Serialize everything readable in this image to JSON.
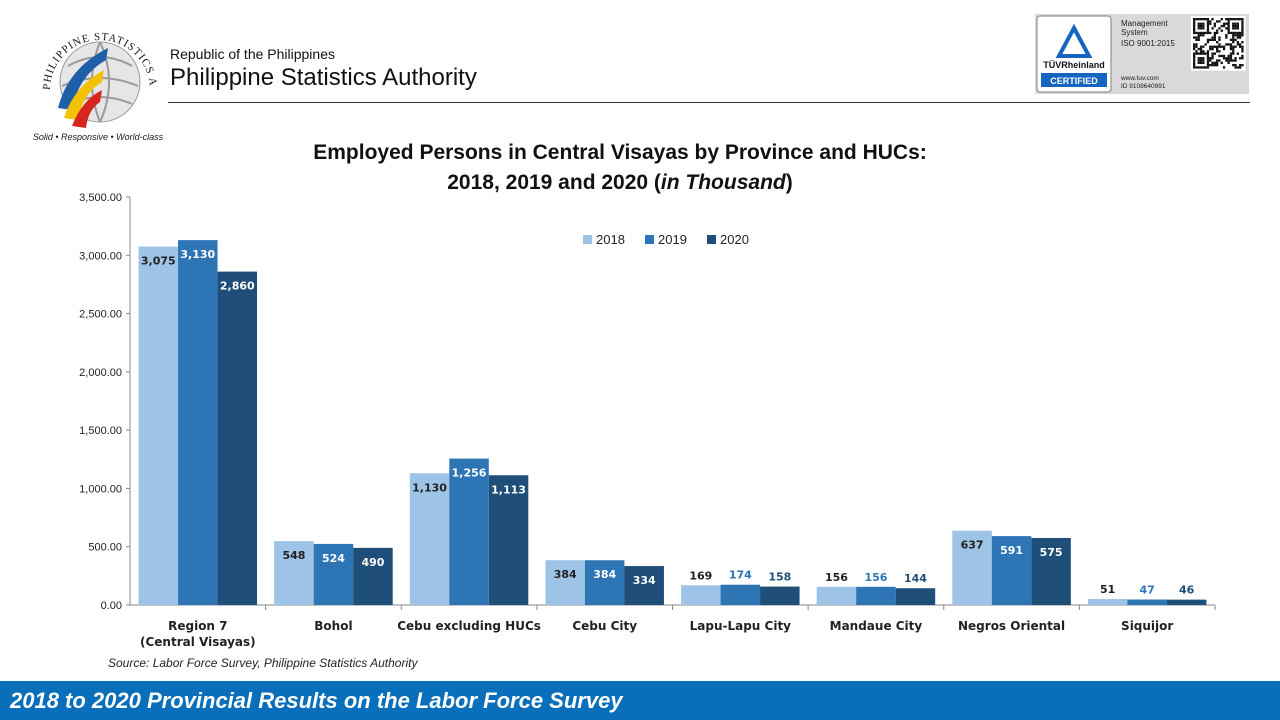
{
  "header": {
    "republic": "Republic of the Philippines",
    "agency": "Philippine Statistics Authority",
    "logo_ring_text": "PHILIPPINE STATISTICS AUTHORITY",
    "logo_motto": "Solid • Responsive • World-class"
  },
  "cert": {
    "brand": "TÜVRheinland",
    "certified": "CERTIFIED",
    "line1": "Management",
    "line2": "System",
    "line3": "ISO 9001:2015",
    "url": "www.tuv.com",
    "id": "ID 9108640991"
  },
  "title_line1": "Employed Persons in Central Visayas by Province and HUCs:",
  "title_line2_prefix": "2018, 2019 and 2020 (",
  "title_line2_em": "in Thousand",
  "title_line2_suffix": ")",
  "source": "Source: Labor Force Survey, Philippine Statistics Authority",
  "footer": "2018 to 2020 Provincial Results on the Labor Force Survey",
  "colors": {
    "s2018": "#9dc3e6",
    "s2019": "#2e75b6",
    "s2020": "#1f4e79",
    "footer": "#0a6fba"
  },
  "chart_data": {
    "type": "bar",
    "categories": [
      "Region 7 (Central Visayas)",
      "Bohol",
      "Cebu excluding HUCs",
      "Cebu City",
      "Lapu-Lapu City",
      "Mandaue City",
      "Negros Oriental",
      "Siquijor"
    ],
    "series": [
      {
        "name": "2018",
        "values": [
          3075,
          548,
          1130,
          384,
          169,
          156,
          637,
          51
        ],
        "labels": [
          "3,075",
          "548",
          "1,130",
          "384",
          "169",
          "156",
          "637",
          "51"
        ]
      },
      {
        "name": "2019",
        "values": [
          3130,
          524,
          1256,
          384,
          174,
          156,
          591,
          47
        ],
        "labels": [
          "3,130",
          "524",
          "1,256",
          "384",
          "174",
          "156",
          "591",
          "47"
        ]
      },
      {
        "name": "2020",
        "values": [
          2860,
          490,
          1113,
          334,
          158,
          144,
          575,
          46
        ],
        "labels": [
          "2,860",
          "490",
          "1,113",
          "334",
          "158",
          "144",
          "575",
          "46"
        ]
      }
    ],
    "yticks": [
      "0.00",
      "500.00",
      "1,000.00",
      "1,500.00",
      "2,000.00",
      "2,500.00",
      "3,000.00",
      "3,500.00"
    ],
    "ylim": [
      0,
      3500
    ],
    "legend_position": "top-center",
    "grid": false
  }
}
